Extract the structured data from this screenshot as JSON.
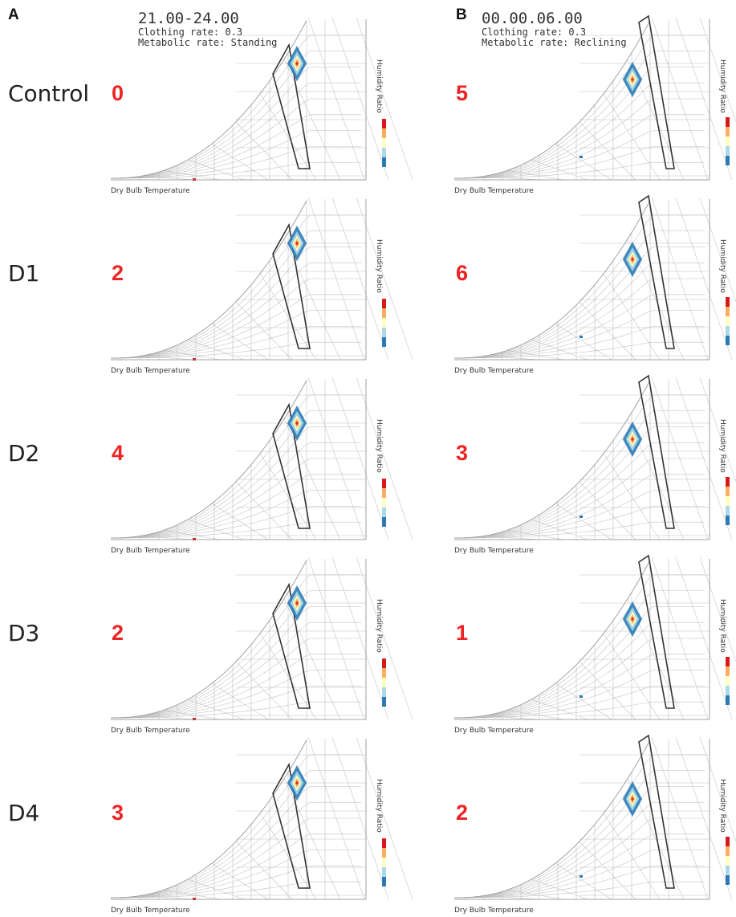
{
  "panels": [
    {
      "letter": "A",
      "time": "21.00-24.00",
      "clothing": "Clothing rate: 0.3",
      "metabolic": "Metabolic rate: Standing"
    },
    {
      "letter": "B",
      "time": "00.00.06.00",
      "clothing": "Clothing rate: 0.3",
      "metabolic": "Metabolic rate: Reclining"
    }
  ],
  "rows": [
    "Control",
    "D1",
    "D2",
    "D3",
    "D4"
  ],
  "chart_data": {
    "type": "heatmap",
    "description_axes": {
      "xlabel": "Dry Bulb Temperature",
      "ylabel": "Humidity Ratio"
    },
    "panel_A_scores": [
      0,
      2,
      4,
      2,
      3
    ],
    "panel_B_scores": [
      5,
      6,
      3,
      1,
      2
    ],
    "colors": {
      "score": "#ee2424",
      "comfort_zone": "#333333",
      "grid": "#bfbfbf",
      "colorbar": [
        "#d7191c",
        "#fdae61",
        "#ffffbf",
        "#abd9e9",
        "#2c7bb6"
      ]
    }
  }
}
